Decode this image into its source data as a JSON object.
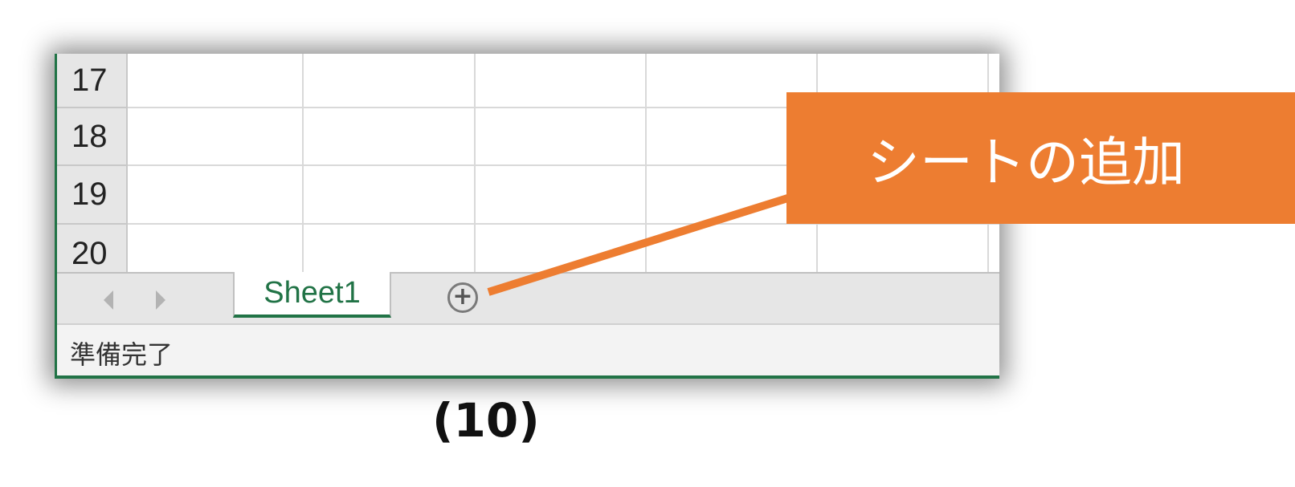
{
  "grid": {
    "rows": [
      "17",
      "18",
      "19",
      "20"
    ]
  },
  "sheets": {
    "tabs": [
      {
        "label": "Sheet1",
        "active": true
      }
    ],
    "add_icon": "plus-circle-icon",
    "add_glyph": "+"
  },
  "status": {
    "text": "準備完了"
  },
  "callout": {
    "text": "シートの追加",
    "color": "#ed7d31"
  },
  "caption": "(10)",
  "theme": {
    "accent": "#217346"
  }
}
